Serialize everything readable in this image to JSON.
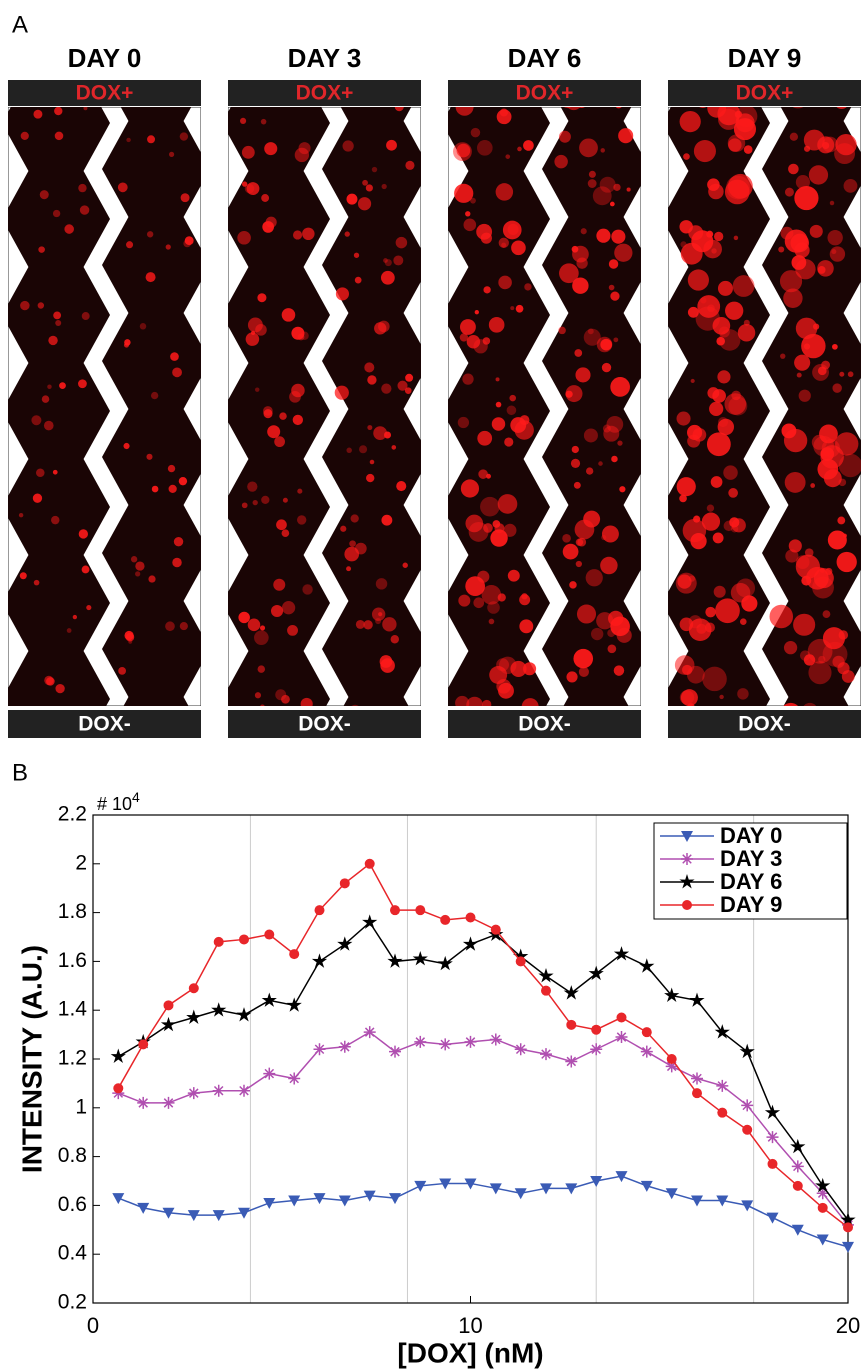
{
  "panel_labels": [
    "A",
    "B"
  ],
  "panel_a": {
    "columns": [
      {
        "title": "DAY 0",
        "top": "DOX+",
        "bottom": "DOX-"
      },
      {
        "title": "DAY 3",
        "top": "DOX+",
        "bottom": "DOX-"
      },
      {
        "title": "DAY 6",
        "top": "DOX+",
        "bottom": "DOX-"
      },
      {
        "title": "DAY 9",
        "top": "DOX+",
        "bottom": "DOX-"
      }
    ]
  },
  "chart_data": {
    "type": "line",
    "x_label": "[DOX] (nM)",
    "y_label": "INTENSITY (A.U.)",
    "y_exponent_base": "# 10",
    "y_exponent": "4",
    "x": [
      0.67,
      1.33,
      2,
      2.67,
      3.33,
      4,
      4.67,
      5.33,
      6,
      6.67,
      7.33,
      8,
      8.67,
      9.33,
      10,
      10.67,
      11.33,
      12,
      12.67,
      13.33,
      14,
      14.67,
      15.33,
      16,
      16.67,
      17.33,
      18,
      18.67,
      19.33,
      20
    ],
    "series": [
      {
        "name": "DAY 0",
        "color": "#3a5bb5",
        "marker": "triangle-down",
        "values": [
          0.63,
          0.59,
          0.57,
          0.56,
          0.56,
          0.57,
          0.61,
          0.62,
          0.63,
          0.62,
          0.64,
          0.63,
          0.68,
          0.69,
          0.69,
          0.67,
          0.65,
          0.67,
          0.67,
          0.7,
          0.72,
          0.68,
          0.65,
          0.62,
          0.62,
          0.6,
          0.55,
          0.5,
          0.46,
          0.43
        ]
      },
      {
        "name": "DAY 3",
        "color": "#b04fb0",
        "marker": "asterisk",
        "values": [
          1.06,
          1.02,
          1.02,
          1.06,
          1.07,
          1.07,
          1.14,
          1.12,
          1.24,
          1.25,
          1.31,
          1.23,
          1.27,
          1.26,
          1.27,
          1.28,
          1.24,
          1.22,
          1.19,
          1.24,
          1.29,
          1.23,
          1.17,
          1.12,
          1.09,
          1.01,
          0.88,
          0.76,
          0.65,
          0.52
        ]
      },
      {
        "name": "DAY 6",
        "color": "#000000",
        "marker": "star",
        "values": [
          1.21,
          1.27,
          1.34,
          1.37,
          1.4,
          1.38,
          1.44,
          1.42,
          1.6,
          1.67,
          1.76,
          1.6,
          1.61,
          1.59,
          1.67,
          1.71,
          1.62,
          1.54,
          1.47,
          1.55,
          1.63,
          1.58,
          1.46,
          1.44,
          1.31,
          1.23,
          0.98,
          0.84,
          0.68,
          0.54
        ]
      },
      {
        "name": "DAY 9",
        "color": "#e8262a",
        "marker": "circle",
        "values": [
          1.08,
          1.26,
          1.42,
          1.49,
          1.68,
          1.69,
          1.71,
          1.63,
          1.81,
          1.92,
          2.0,
          1.81,
          1.81,
          1.77,
          1.78,
          1.73,
          1.6,
          1.48,
          1.34,
          1.32,
          1.37,
          1.31,
          1.2,
          1.06,
          0.98,
          0.91,
          0.77,
          0.68,
          0.59,
          0.51
        ]
      }
    ],
    "xlim": [
      0,
      20
    ],
    "xticks": [
      0,
      10,
      20
    ],
    "xgrid": [
      4.17,
      8.33,
      13.33,
      17.5
    ],
    "ylim": [
      0.2,
      2.2
    ],
    "yticks": [
      0.2,
      0.4,
      0.6,
      0.8,
      1,
      1.2,
      1.4,
      1.6,
      1.8,
      2,
      2.2
    ],
    "legend": "upper right"
  }
}
